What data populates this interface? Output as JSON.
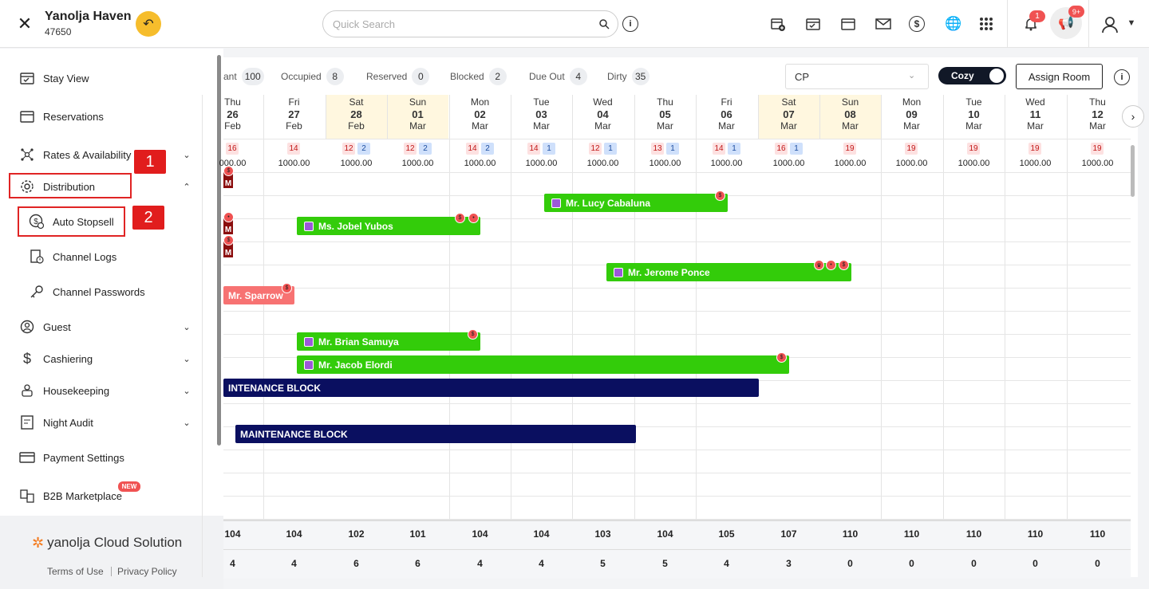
{
  "header": {
    "hotel_name": "Yanolja Haven",
    "hotel_id": "47650",
    "search_placeholder": "Quick Search",
    "notif_count": "1",
    "announce_count": "9+"
  },
  "sidebar": {
    "items": [
      {
        "label": "Stay View"
      },
      {
        "label": "Reservations"
      },
      {
        "label": "Rates & Availability"
      },
      {
        "label": "Distribution"
      },
      {
        "label": "Auto Stopsell"
      },
      {
        "label": "Channel Logs"
      },
      {
        "label": "Channel Passwords"
      },
      {
        "label": "Guest"
      },
      {
        "label": "Cashiering"
      },
      {
        "label": "Housekeeping"
      },
      {
        "label": "Night Audit"
      },
      {
        "label": "Payment Settings"
      },
      {
        "label": "B2B Marketplace"
      }
    ],
    "new_badge": "NEW",
    "step1": "1",
    "step2": "2",
    "brand": "yanolja Cloud Solution",
    "terms": "Terms of Use",
    "privacy": "Privacy Policy"
  },
  "stats": [
    {
      "label": "ant",
      "value": "100"
    },
    {
      "label": "Occupied",
      "value": "8"
    },
    {
      "label": "Reserved",
      "value": "0"
    },
    {
      "label": "Blocked",
      "value": "2"
    },
    {
      "label": "Due Out",
      "value": "4"
    },
    {
      "label": "Dirty",
      "value": "35"
    }
  ],
  "toolbar": {
    "rate_plan": "CP",
    "view_toggle": "Cozy",
    "assign_label": "Assign Room"
  },
  "days": [
    {
      "dow": "Thu",
      "d": "26",
      "m": "Feb",
      "a": "16",
      "b": "",
      "rate": "000.00",
      "weekend": false
    },
    {
      "dow": "Fri",
      "d": "27",
      "m": "Feb",
      "a": "14",
      "b": "",
      "rate": "1000.00",
      "weekend": false
    },
    {
      "dow": "Sat",
      "d": "28",
      "m": "Feb",
      "a": "12",
      "b": "2",
      "rate": "1000.00",
      "weekend": true
    },
    {
      "dow": "Sun",
      "d": "01",
      "m": "Mar",
      "a": "12",
      "b": "2",
      "rate": "1000.00",
      "weekend": true
    },
    {
      "dow": "Mon",
      "d": "02",
      "m": "Mar",
      "a": "14",
      "b": "2",
      "rate": "1000.00",
      "weekend": false
    },
    {
      "dow": "Tue",
      "d": "03",
      "m": "Mar",
      "a": "14",
      "b": "1",
      "rate": "1000.00",
      "weekend": false
    },
    {
      "dow": "Wed",
      "d": "04",
      "m": "Mar",
      "a": "12",
      "b": "1",
      "rate": "1000.00",
      "weekend": false
    },
    {
      "dow": "Thu",
      "d": "05",
      "m": "Mar",
      "a": "13",
      "b": "1",
      "rate": "1000.00",
      "weekend": false
    },
    {
      "dow": "Fri",
      "d": "06",
      "m": "Mar",
      "a": "14",
      "b": "1",
      "rate": "1000.00",
      "weekend": false
    },
    {
      "dow": "Sat",
      "d": "07",
      "m": "Mar",
      "a": "16",
      "b": "1",
      "rate": "1000.00",
      "weekend": true
    },
    {
      "dow": "Sun",
      "d": "08",
      "m": "Mar",
      "a": "19",
      "b": "",
      "rate": "1000.00",
      "weekend": true
    },
    {
      "dow": "Mon",
      "d": "09",
      "m": "Mar",
      "a": "19",
      "b": "",
      "rate": "1000.00",
      "weekend": false
    },
    {
      "dow": "Tue",
      "d": "10",
      "m": "Mar",
      "a": "19",
      "b": "",
      "rate": "1000.00",
      "weekend": false
    },
    {
      "dow": "Wed",
      "d": "11",
      "m": "Mar",
      "a": "19",
      "b": "",
      "rate": "1000.00",
      "weekend": false
    },
    {
      "dow": "Thu",
      "d": "12",
      "m": "Mar",
      "a": "19",
      "b": "",
      "rate": "1000.00",
      "weekend": false
    }
  ],
  "bookings": {
    "lucy": "Mr. Lucy Cabaluna",
    "jobel": "Ms. Jobel Yubos",
    "jerome": "Mr. Jerome Ponce",
    "sparrow": "Mr. Sparrow",
    "brian": "Mr. Brian Samuya",
    "jacob": "Mr. Jacob Elordi",
    "block1": "INTENANCE BLOCK",
    "block2": "MAINTENANCE BLOCK",
    "stub": "M"
  },
  "totals": {
    "row1": [
      "104",
      "104",
      "102",
      "101",
      "104",
      "104",
      "103",
      "104",
      "105",
      "107",
      "110",
      "110",
      "110",
      "110",
      "110"
    ],
    "row2": [
      "4",
      "4",
      "6",
      "6",
      "4",
      "4",
      "5",
      "5",
      "4",
      "3",
      "0",
      "0",
      "0",
      "0",
      "0"
    ]
  }
}
